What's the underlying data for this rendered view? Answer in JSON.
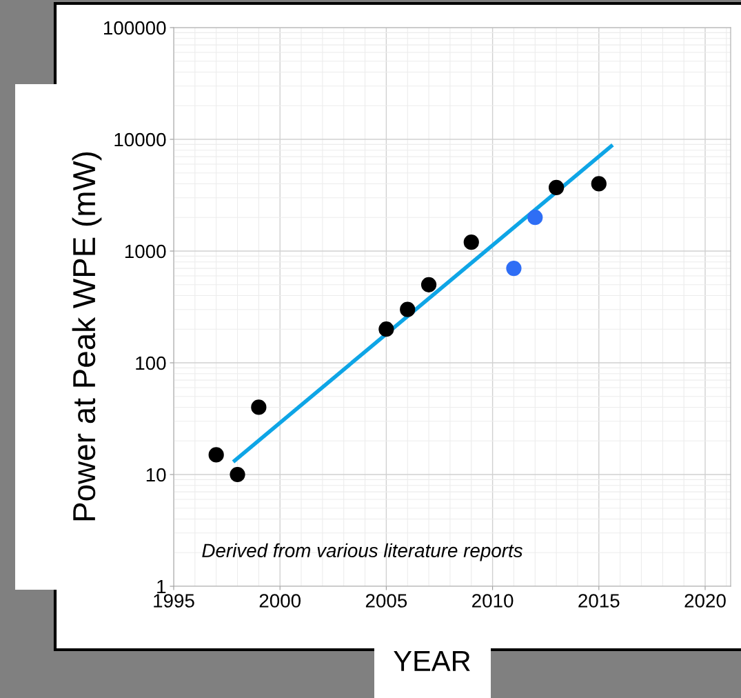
{
  "chart_data": {
    "type": "scatter",
    "xlabel": "YEAR",
    "ylabel": "Power at Peak WPE (mW)",
    "annotations": [
      "Derived from various literature reports"
    ],
    "log": "y",
    "grid": true,
    "marker": "circle",
    "legend": false,
    "xlim": [
      1995,
      2021.2
    ],
    "xticks": [
      1995,
      2000,
      2005,
      2010,
      2015,
      2020
    ],
    "ylim": [
      1,
      100000
    ],
    "yticks": [
      1,
      10,
      100,
      1000,
      10000,
      100000
    ],
    "series": [
      {
        "color": "#000000",
        "x": [
          1997,
          1998,
          1999,
          2005,
          2006,
          2007,
          2009,
          2013,
          2015
        ],
        "values": [
          15,
          10,
          40,
          200,
          300,
          500,
          1200,
          3700,
          4000
        ]
      },
      {
        "color": "#2f6ef5",
        "x": [
          2011,
          2012
        ],
        "values": [
          700,
          2000
        ]
      },
      {
        "type": "line",
        "color": "#0ea5e6",
        "marker": "none",
        "x": [
          1997.8,
          2015.65
        ],
        "values": [
          13,
          8900
        ]
      }
    ]
  }
}
